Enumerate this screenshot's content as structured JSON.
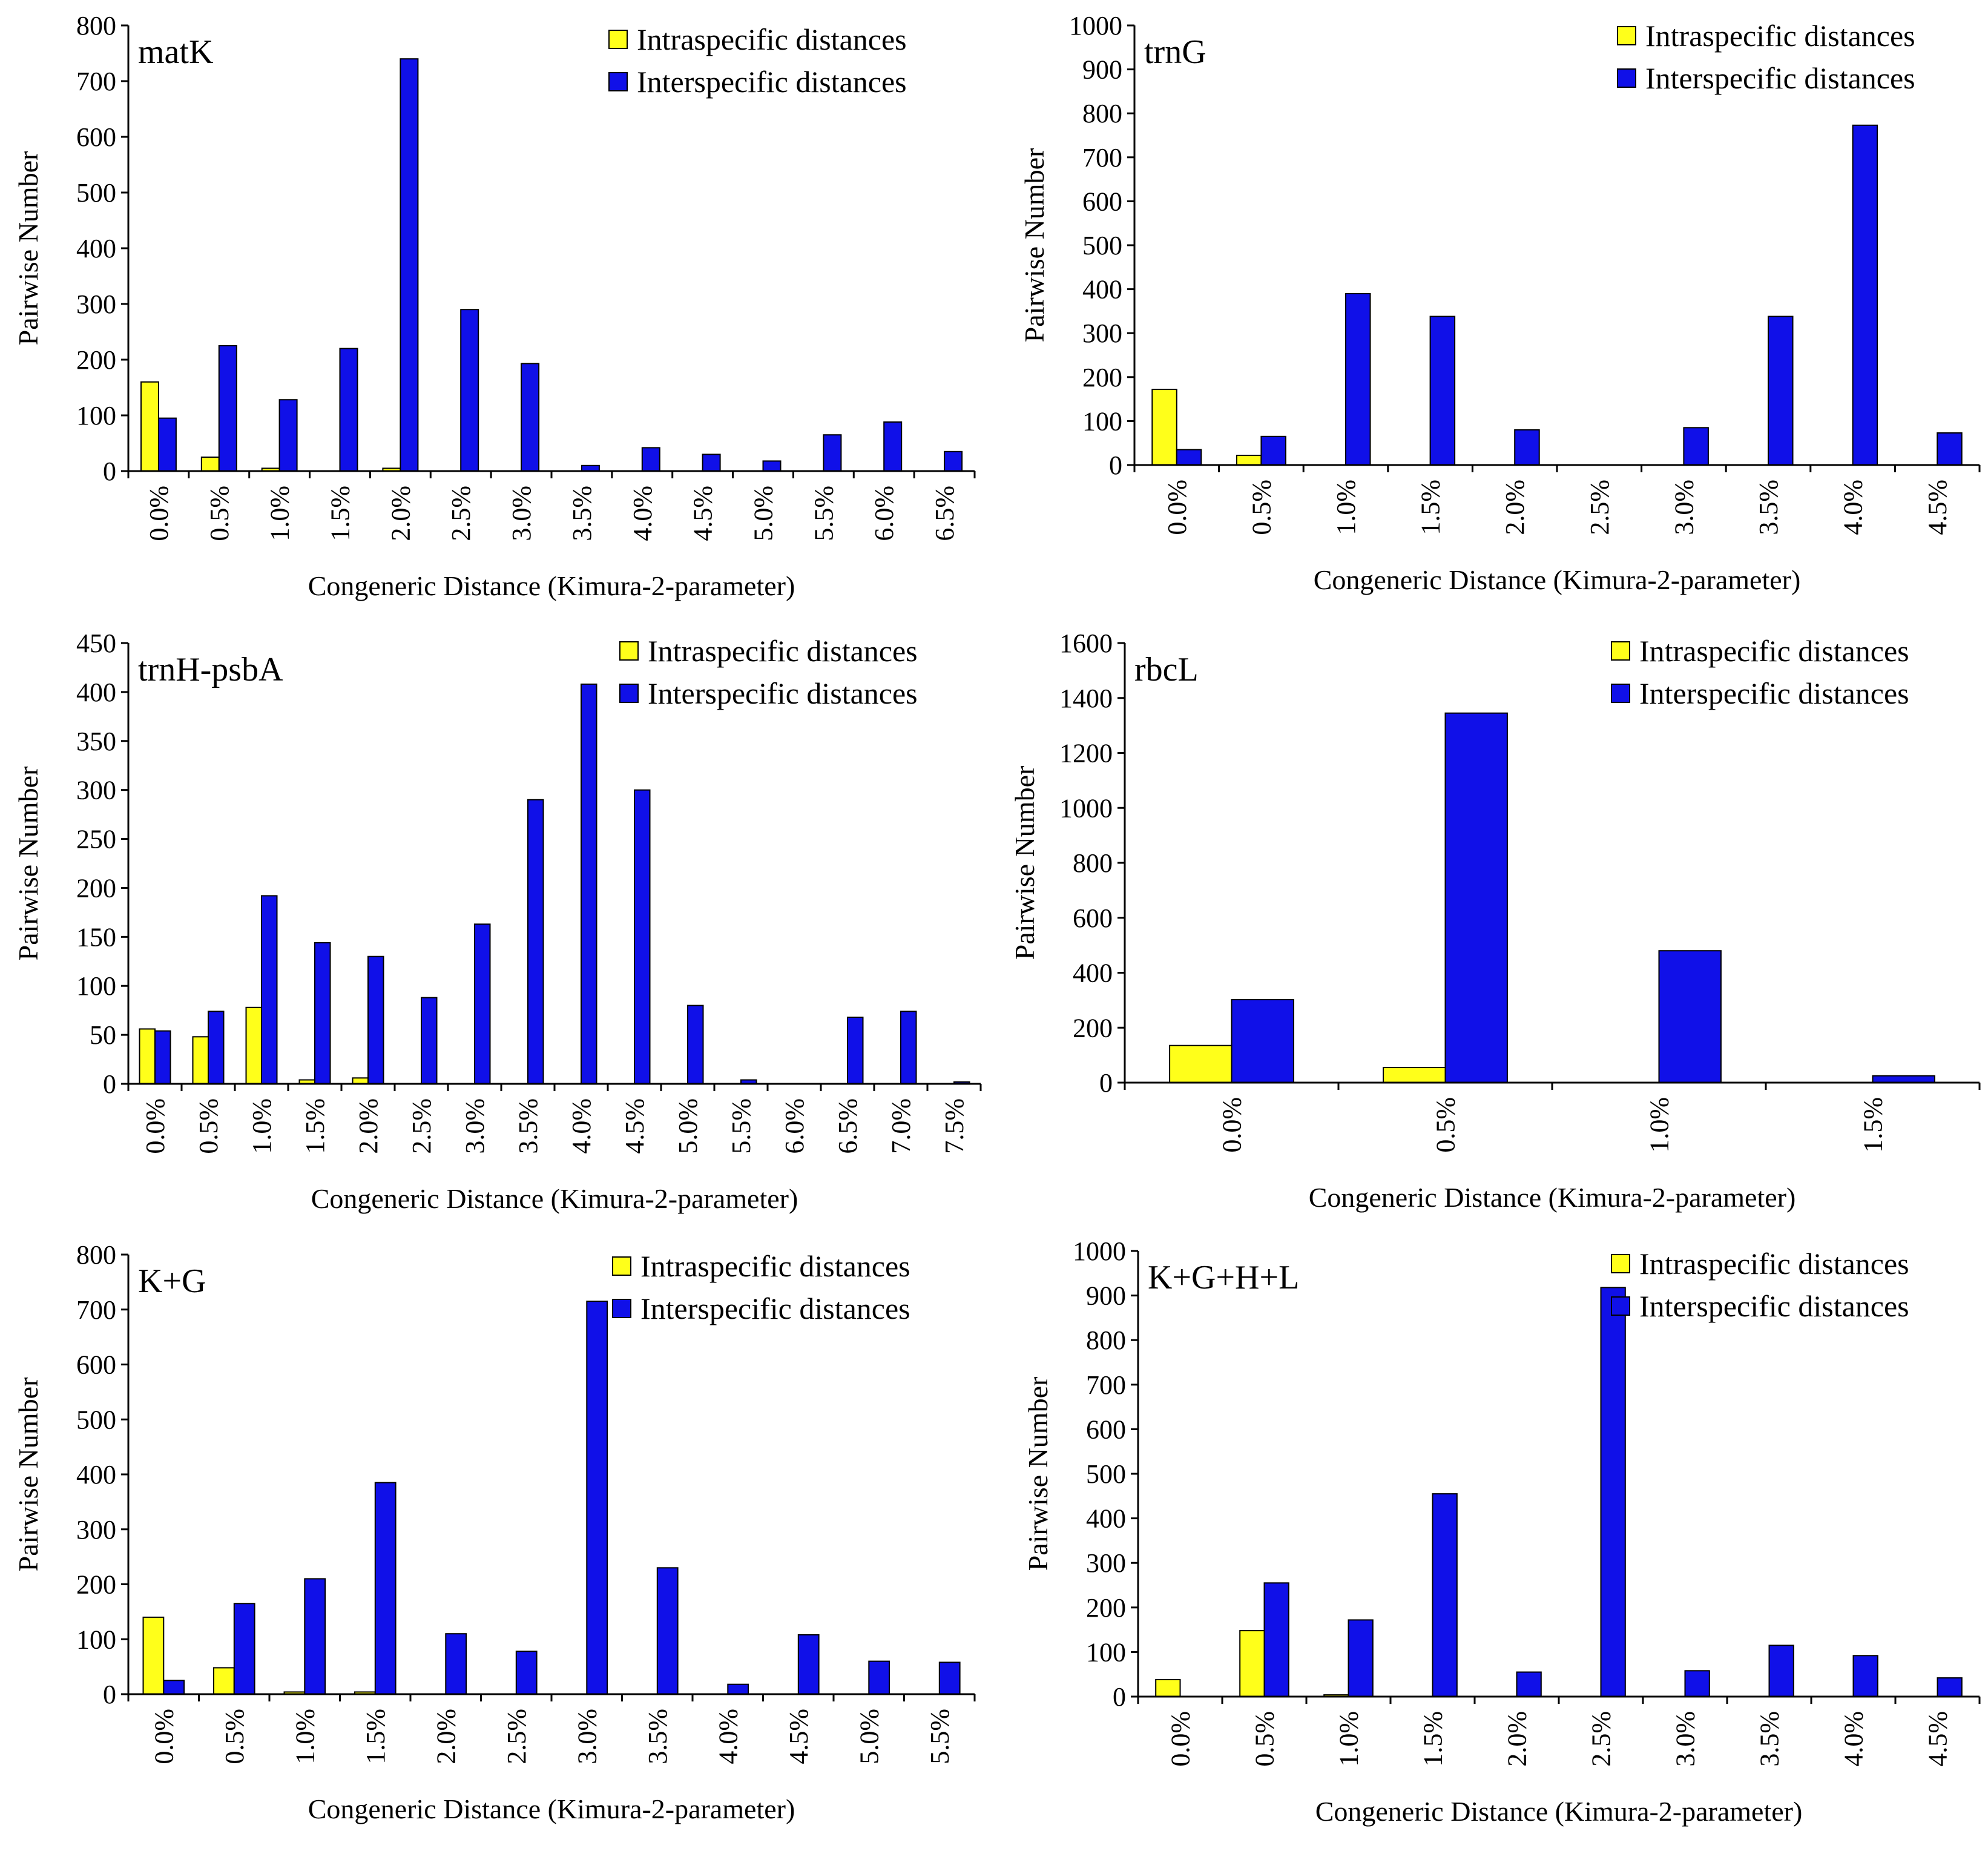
{
  "colors": {
    "intra": "#ffff1a",
    "inter": "#1010e8"
  },
  "chart_data": [
    {
      "type": "bar",
      "title": "matK",
      "xlabel": "Congeneric Distance (Kimura-2-parameter)",
      "ylabel": "Pairwise Number",
      "ylim": [
        0,
        800
      ],
      "yticks": [
        0,
        100,
        200,
        300,
        400,
        500,
        600,
        700,
        800
      ],
      "legend_position": "top-right",
      "grid": false,
      "categories": [
        "0.0%",
        "0.5%",
        "1.0%",
        "1.5%",
        "2.0%",
        "2.5%",
        "3.0%",
        "3.5%",
        "4.0%",
        "4.5%",
        "5.0%",
        "5.5%",
        "6.0%",
        "6.5%"
      ],
      "series": [
        {
          "name": "Intraspecific distances",
          "values": [
            160,
            25,
            5,
            0,
            5,
            0,
            0,
            0,
            0,
            0,
            0,
            0,
            0,
            0
          ]
        },
        {
          "name": "Interspecific distances",
          "values": [
            95,
            225,
            128,
            220,
            740,
            290,
            193,
            10,
            42,
            30,
            18,
            65,
            88,
            35
          ]
        }
      ]
    },
    {
      "type": "bar",
      "title": "trnG",
      "xlabel": "Congeneric Distance (Kimura-2-parameter)",
      "ylabel": "Pairwise Number",
      "ylim": [
        0,
        1000
      ],
      "yticks": [
        0,
        100,
        200,
        300,
        400,
        500,
        600,
        700,
        800,
        900,
        1000
      ],
      "legend_position": "top-right",
      "grid": false,
      "categories": [
        "0.0%",
        "0.5%",
        "1.0%",
        "1.5%",
        "2.0%",
        "2.5%",
        "3.0%",
        "3.5%",
        "4.0%",
        "4.5%"
      ],
      "series": [
        {
          "name": "Intraspecific distances",
          "values": [
            172,
            22,
            0,
            0,
            0,
            0,
            0,
            0,
            0,
            0
          ]
        },
        {
          "name": "Interspecific distances",
          "values": [
            35,
            65,
            390,
            338,
            80,
            0,
            85,
            338,
            773,
            73
          ]
        }
      ]
    },
    {
      "type": "bar",
      "title": "trnH-psbA",
      "xlabel": "Congeneric Distance (Kimura-2-parameter)",
      "ylabel": "Pairwise Number",
      "ylim": [
        0,
        450
      ],
      "yticks": [
        0,
        50,
        100,
        150,
        200,
        250,
        300,
        350,
        400,
        450
      ],
      "legend_position": "top-right",
      "grid": false,
      "categories": [
        "0.0%",
        "0.5%",
        "1.0%",
        "1.5%",
        "2.0%",
        "2.5%",
        "3.0%",
        "3.5%",
        "4.0%",
        "4.5%",
        "5.0%",
        "5.5%",
        "6.0%",
        "6.5%",
        "7.0%",
        "7.5%"
      ],
      "series": [
        {
          "name": "Intraspecific distances",
          "values": [
            56,
            48,
            78,
            4,
            6,
            0,
            0,
            0,
            0,
            0,
            0,
            0,
            0,
            0,
            0,
            0
          ]
        },
        {
          "name": "Interspecific distances",
          "values": [
            54,
            74,
            192,
            144,
            130,
            88,
            163,
            290,
            408,
            300,
            80,
            4,
            0,
            68,
            74,
            2
          ]
        }
      ]
    },
    {
      "type": "bar",
      "title": "rbcL",
      "xlabel": "Congeneric Distance (Kimura-2-parameter)",
      "ylabel": "Pairwise Number",
      "ylim": [
        0,
        1600
      ],
      "yticks": [
        0,
        200,
        400,
        600,
        800,
        1000,
        1200,
        1400,
        1600
      ],
      "legend_position": "top-right",
      "grid": false,
      "categories": [
        "0.0%",
        "0.5%",
        "1.0%",
        "1.5%"
      ],
      "series": [
        {
          "name": "Intraspecific distances",
          "values": [
            135,
            55,
            0,
            0
          ]
        },
        {
          "name": "Interspecific distances",
          "values": [
            302,
            1345,
            480,
            25
          ]
        }
      ]
    },
    {
      "type": "bar",
      "title": "K+G",
      "xlabel": "Congeneric Distance (Kimura-2-parameter)",
      "ylabel": "Pairwise Number",
      "ylim": [
        0,
        800
      ],
      "yticks": [
        0,
        100,
        200,
        300,
        400,
        500,
        600,
        700,
        800
      ],
      "legend_position": "top-right",
      "grid": false,
      "categories": [
        "0.0%",
        "0.5%",
        "1.0%",
        "1.5%",
        "2.0%",
        "2.5%",
        "3.0%",
        "3.5%",
        "4.0%",
        "4.5%",
        "5.0%",
        "5.5%"
      ],
      "series": [
        {
          "name": "Intraspecific distances",
          "values": [
            140,
            48,
            4,
            4,
            0,
            0,
            0,
            0,
            0,
            0,
            0,
            0
          ]
        },
        {
          "name": "Interspecific distances",
          "values": [
            25,
            165,
            210,
            385,
            110,
            78,
            715,
            230,
            18,
            108,
            60,
            58
          ]
        }
      ]
    },
    {
      "type": "bar",
      "title": "K+G+H+L",
      "xlabel": "Congeneric Distance (Kimura-2-parameter)",
      "ylabel": "Pairwise Number",
      "ylim": [
        0,
        1000
      ],
      "yticks": [
        0,
        100,
        200,
        300,
        400,
        500,
        600,
        700,
        800,
        900,
        1000
      ],
      "legend_position": "top-right",
      "grid": false,
      "categories": [
        "0.0%",
        "0.5%",
        "1.0%",
        "1.5%",
        "2.0%",
        "2.5%",
        "3.0%",
        "3.5%",
        "4.0%",
        "4.5%"
      ],
      "series": [
        {
          "name": "Intraspecific distances",
          "values": [
            38,
            148,
            4,
            0,
            0,
            0,
            0,
            0,
            0,
            0
          ]
        },
        {
          "name": "Interspecific distances",
          "values": [
            0,
            255,
            172,
            455,
            55,
            918,
            58,
            115,
            92,
            42
          ]
        }
      ]
    }
  ]
}
